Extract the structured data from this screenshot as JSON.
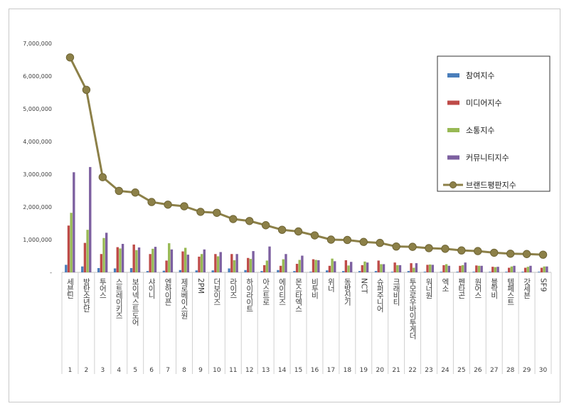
{
  "chart_data": {
    "type": "bar",
    "title": "",
    "xlabel": "",
    "ylabel": "",
    "ylim": [
      0,
      7000000
    ],
    "yticks": [
      "-",
      "1,000,000",
      "2,000,000",
      "3,000,000",
      "4,000,000",
      "5,000,000",
      "6,000,000",
      "7,000,000"
    ],
    "legend_position": "top-right",
    "grid": false,
    "ranks": [
      "1",
      "2",
      "3",
      "4",
      "5",
      "6",
      "7",
      "8",
      "9",
      "10",
      "11",
      "12",
      "13",
      "14",
      "15",
      "16",
      "17",
      "18",
      "19",
      "20",
      "21",
      "22",
      "23",
      "24",
      "25",
      "26",
      "27",
      "28",
      "29",
      "30"
    ],
    "categories": [
      "세븐틴",
      "방탄소년단",
      "투어스",
      "스트레이키즈",
      "보이넥스트도어",
      "샤이니",
      "엔하이픈",
      "제로베이스원",
      "2PM",
      "더보이즈",
      "라이즈",
      "하이라이트",
      "아스트로",
      "에이티즈",
      "몬스타엑스",
      "비투비",
      "위너",
      "동방신기",
      "NCT",
      "슈퍼주니어",
      "크래비티",
      "투모로우바이투게더",
      "워너원",
      "엑소",
      "펜타곤",
      "원어스",
      "블락비",
      "템페스트",
      "갓세븐",
      "SF9"
    ],
    "series": [
      {
        "name": "참여지수",
        "type": "bar",
        "color": "#4a7ebb",
        "values": [
          230000,
          180000,
          130000,
          120000,
          130000,
          40000,
          50000,
          70000,
          60000,
          60000,
          120000,
          70000,
          40000,
          70000,
          40000,
          20000,
          60000,
          40000,
          40000,
          40000,
          20000,
          40000,
          20000,
          20000,
          20000,
          20000,
          20000,
          20000,
          20000,
          20000
        ]
      },
      {
        "name": "미디어지수",
        "type": "bar",
        "color": "#be4b48",
        "values": [
          1430000,
          900000,
          560000,
          770000,
          850000,
          560000,
          360000,
          640000,
          480000,
          560000,
          560000,
          440000,
          220000,
          200000,
          260000,
          400000,
          200000,
          370000,
          220000,
          360000,
          300000,
          280000,
          230000,
          220000,
          200000,
          210000,
          170000,
          140000,
          140000,
          140000
        ]
      },
      {
        "name": "소통지수",
        "type": "bar",
        "color": "#98b954",
        "values": [
          1820000,
          1300000,
          1050000,
          730000,
          680000,
          720000,
          890000,
          750000,
          560000,
          490000,
          370000,
          410000,
          360000,
          400000,
          380000,
          380000,
          420000,
          210000,
          330000,
          250000,
          220000,
          140000,
          240000,
          250000,
          220000,
          200000,
          160000,
          180000,
          170000,
          180000
        ]
      },
      {
        "name": "커뮤니티지수",
        "type": "bar",
        "color": "#7d60a0",
        "values": [
          3060000,
          3220000,
          1210000,
          870000,
          760000,
          780000,
          700000,
          540000,
          700000,
          620000,
          560000,
          650000,
          790000,
          560000,
          510000,
          370000,
          340000,
          320000,
          300000,
          250000,
          220000,
          280000,
          230000,
          200000,
          300000,
          200000,
          170000,
          200000,
          200000,
          180000
        ]
      },
      {
        "name": "브랜드평판지수",
        "type": "line",
        "color": "#8c8048",
        "values": [
          6570000,
          5580000,
          2910000,
          2490000,
          2440000,
          2150000,
          2070000,
          2020000,
          1850000,
          1820000,
          1630000,
          1570000,
          1440000,
          1300000,
          1250000,
          1130000,
          1000000,
          990000,
          930000,
          900000,
          790000,
          780000,
          740000,
          720000,
          670000,
          650000,
          600000,
          570000,
          560000,
          540000
        ]
      }
    ]
  }
}
